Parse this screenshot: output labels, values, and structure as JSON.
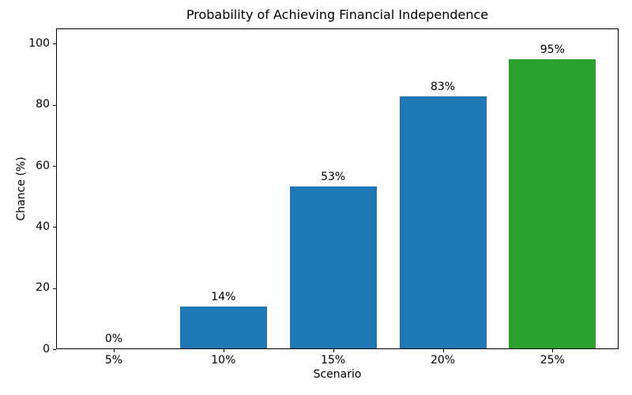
{
  "chart_data": {
    "type": "bar",
    "title": "Probability of Achieving Financial Independence",
    "xlabel": "Scenario",
    "ylabel": "Chance (%)",
    "categories": [
      "5%",
      "10%",
      "15%",
      "20%",
      "25%"
    ],
    "values": [
      0.3,
      14,
      53.4,
      82.8,
      94.8
    ],
    "bar_labels": [
      "0%",
      "14%",
      "53%",
      "83%",
      "95%"
    ],
    "bar_colors": [
      "#1f77b4",
      "#1f77b4",
      "#1f77b4",
      "#1f77b4",
      "#2ca02c"
    ],
    "ylim": [
      0,
      105
    ],
    "yticks": [
      0,
      20,
      40,
      60,
      80,
      100
    ],
    "grid": false,
    "legend": false,
    "background_color": "#ffffff",
    "axis_color": "#000000",
    "text_color": "#000000"
  }
}
